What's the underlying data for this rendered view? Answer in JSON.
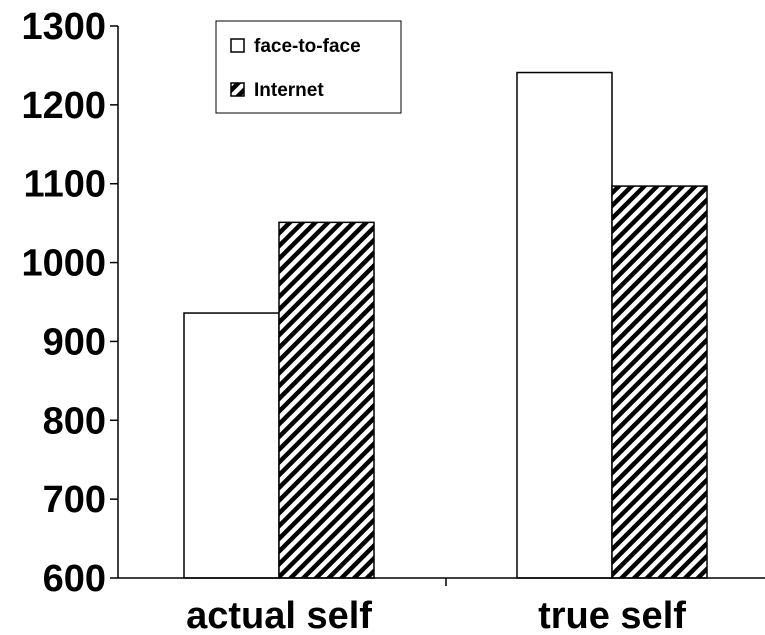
{
  "chart_data": {
    "type": "bar",
    "title": "",
    "xlabel": "",
    "ylabel": "",
    "categories": [
      "actual self",
      "true self"
    ],
    "series": [
      {
        "name": "face-to-face",
        "values": [
          936,
          1241
        ],
        "pattern": "none"
      },
      {
        "name": "Internet",
        "values": [
          1051,
          1097
        ],
        "pattern": "diagonal-stripes"
      }
    ],
    "ylim": [
      600,
      1300
    ],
    "yticks": [
      600,
      700,
      800,
      900,
      1000,
      1100,
      1200,
      1300
    ],
    "grid": false,
    "legend": {
      "placement": "top-left"
    },
    "colors": {
      "bar_fill": "#ffffff",
      "bar_stroke": "#000000",
      "stripe": "#000000"
    }
  }
}
